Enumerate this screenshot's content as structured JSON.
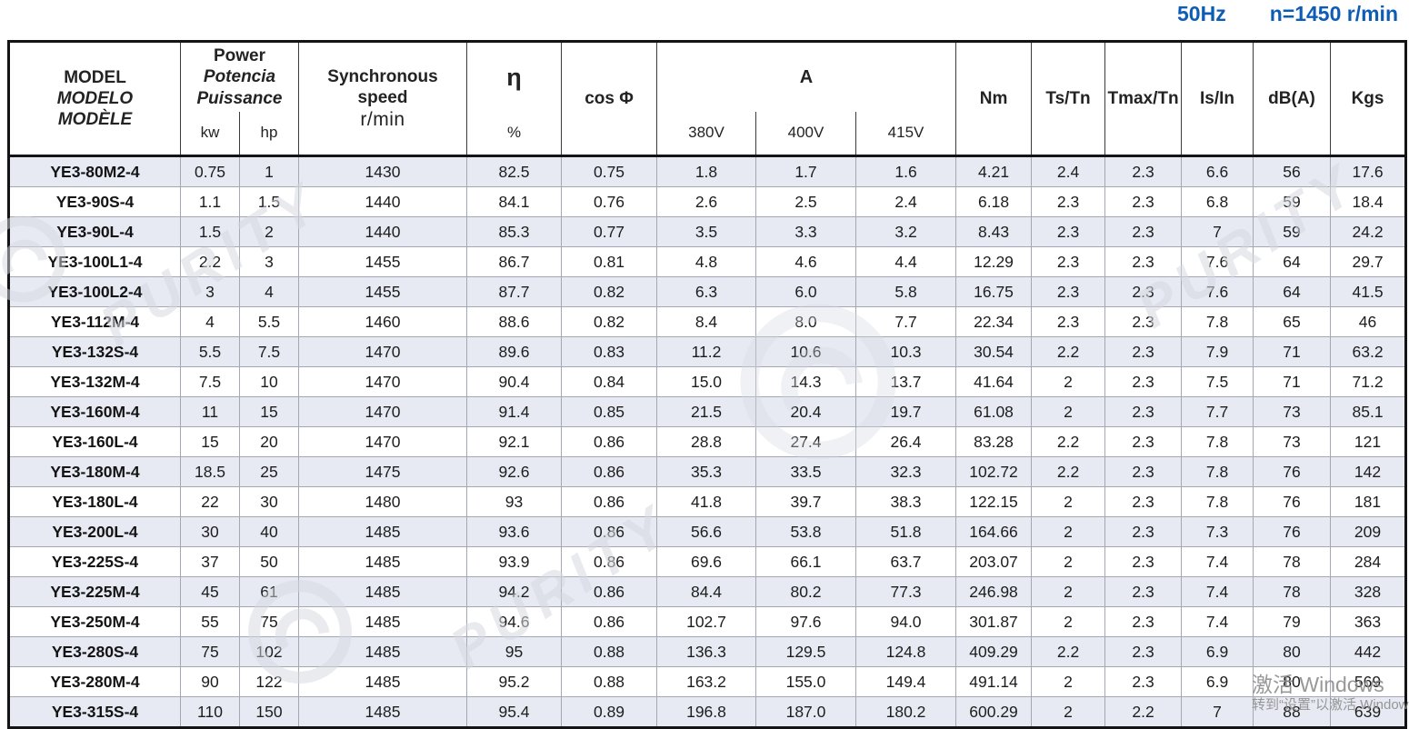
{
  "note": {
    "frequency": "50Hz",
    "speed": "n=1450 r/min",
    "color": "#0d5cb6"
  },
  "table": {
    "header": {
      "model_lines": [
        "MODEL",
        "MODELO",
        "MODÈLE"
      ],
      "power_lines": [
        "Power",
        "Potencia",
        "Puissance"
      ],
      "power_units": [
        "kw",
        "hp"
      ],
      "sync_lines": [
        "Synchronous",
        "speed",
        "r/min"
      ],
      "eta_symbol": "η",
      "eta_unit": "%",
      "cos_phi": "cos Φ",
      "current_title": "A",
      "voltages": [
        "380V",
        "400V",
        "415V"
      ],
      "nm": "Nm",
      "ts_tn": "Ts/Tn",
      "tmax_tn": "Tmax/Tn",
      "is_in": "Is/In",
      "db": "dB(A)",
      "kgs": "Kgs"
    },
    "rows": [
      [
        "YE3-80M2-4",
        "0.75",
        "1",
        "1430",
        "82.5",
        "0.75",
        "1.8",
        "1.7",
        "1.6",
        "4.21",
        "2.4",
        "2.3",
        "6.6",
        "56",
        "17.6"
      ],
      [
        "YE3-90S-4",
        "1.1",
        "1.5",
        "1440",
        "84.1",
        "0.76",
        "2.6",
        "2.5",
        "2.4",
        "6.18",
        "2.3",
        "2.3",
        "6.8",
        "59",
        "18.4"
      ],
      [
        "YE3-90L-4",
        "1.5",
        "2",
        "1440",
        "85.3",
        "0.77",
        "3.5",
        "3.3",
        "3.2",
        "8.43",
        "2.3",
        "2.3",
        "7",
        "59",
        "24.2"
      ],
      [
        "YE3-100L1-4",
        "2.2",
        "3",
        "1455",
        "86.7",
        "0.81",
        "4.8",
        "4.6",
        "4.4",
        "12.29",
        "2.3",
        "2.3",
        "7.6",
        "64",
        "29.7"
      ],
      [
        "YE3-100L2-4",
        "3",
        "4",
        "1455",
        "87.7",
        "0.82",
        "6.3",
        "6.0",
        "5.8",
        "16.75",
        "2.3",
        "2.3",
        "7.6",
        "64",
        "41.5"
      ],
      [
        "YE3-112M-4",
        "4",
        "5.5",
        "1460",
        "88.6",
        "0.82",
        "8.4",
        "8.0",
        "7.7",
        "22.34",
        "2.3",
        "2.3",
        "7.8",
        "65",
        "46"
      ],
      [
        "YE3-132S-4",
        "5.5",
        "7.5",
        "1470",
        "89.6",
        "0.83",
        "11.2",
        "10.6",
        "10.3",
        "30.54",
        "2.2",
        "2.3",
        "7.9",
        "71",
        "63.2"
      ],
      [
        "YE3-132M-4",
        "7.5",
        "10",
        "1470",
        "90.4",
        "0.84",
        "15.0",
        "14.3",
        "13.7",
        "41.64",
        "2",
        "2.3",
        "7.5",
        "71",
        "71.2"
      ],
      [
        "YE3-160M-4",
        "11",
        "15",
        "1470",
        "91.4",
        "0.85",
        "21.5",
        "20.4",
        "19.7",
        "61.08",
        "2",
        "2.3",
        "7.7",
        "73",
        "85.1"
      ],
      [
        "YE3-160L-4",
        "15",
        "20",
        "1470",
        "92.1",
        "0.86",
        "28.8",
        "27.4",
        "26.4",
        "83.28",
        "2.2",
        "2.3",
        "7.8",
        "73",
        "121"
      ],
      [
        "YE3-180M-4",
        "18.5",
        "25",
        "1475",
        "92.6",
        "0.86",
        "35.3",
        "33.5",
        "32.3",
        "102.72",
        "2.2",
        "2.3",
        "7.8",
        "76",
        "142"
      ],
      [
        "YE3-180L-4",
        "22",
        "30",
        "1480",
        "93",
        "0.86",
        "41.8",
        "39.7",
        "38.3",
        "122.15",
        "2",
        "2.3",
        "7.8",
        "76",
        "181"
      ],
      [
        "YE3-200L-4",
        "30",
        "40",
        "1485",
        "93.6",
        "0.86",
        "56.6",
        "53.8",
        "51.8",
        "164.66",
        "2",
        "2.3",
        "7.3",
        "76",
        "209"
      ],
      [
        "YE3-225S-4",
        "37",
        "50",
        "1485",
        "93.9",
        "0.86",
        "69.6",
        "66.1",
        "63.7",
        "203.07",
        "2",
        "2.3",
        "7.4",
        "78",
        "284"
      ],
      [
        "YE3-225M-4",
        "45",
        "61",
        "1485",
        "94.2",
        "0.86",
        "84.4",
        "80.2",
        "77.3",
        "246.98",
        "2",
        "2.3",
        "7.4",
        "78",
        "328"
      ],
      [
        "YE3-250M-4",
        "55",
        "75",
        "1485",
        "94.6",
        "0.86",
        "102.7",
        "97.6",
        "94.0",
        "301.87",
        "2",
        "2.3",
        "7.4",
        "79",
        "363"
      ],
      [
        "YE3-280S-4",
        "75",
        "102",
        "1485",
        "95",
        "0.88",
        "136.3",
        "129.5",
        "124.8",
        "409.29",
        "2.2",
        "2.3",
        "6.9",
        "80",
        "442"
      ],
      [
        "YE3-280M-4",
        "90",
        "122",
        "1485",
        "95.2",
        "0.88",
        "163.2",
        "155.0",
        "149.4",
        "491.14",
        "2",
        "2.3",
        "6.9",
        "80",
        "569"
      ],
      [
        "YE3-315S-4",
        "110",
        "150",
        "1485",
        "95.4",
        "0.89",
        "196.8",
        "187.0",
        "180.2",
        "600.29",
        "2",
        "2.2",
        "7",
        "88",
        "639"
      ]
    ]
  },
  "watermark": {
    "brand": "PURITY"
  },
  "windows_overlay": {
    "line1": "激活 Windows",
    "line2": "转到“设置”以激活 Window"
  }
}
